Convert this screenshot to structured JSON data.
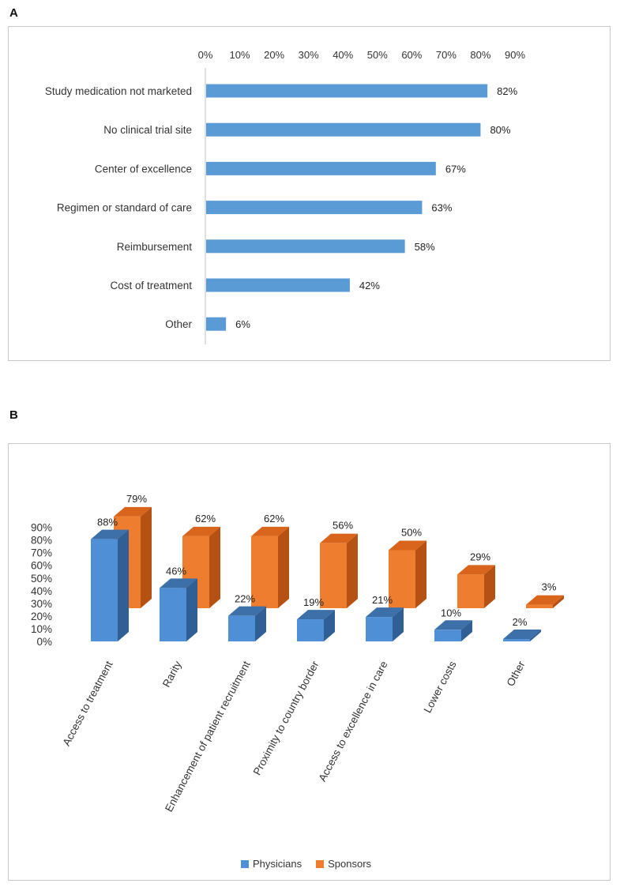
{
  "panels": {
    "a_label": "A",
    "b_label": "B"
  },
  "colors": {
    "bar_blue": "#5b9bd5",
    "physicians_front": "#4f8fd6",
    "physicians_side": "#2f5f95",
    "physicians_top": "#3d6fa8",
    "sponsors_front": "#ef7d2f",
    "sponsors_side": "#b55213",
    "sponsors_top": "#d9651c",
    "axis": "#bfbfbf"
  },
  "chart_data": [
    {
      "type": "bar",
      "orientation": "horizontal",
      "title": "",
      "categories": [
        "Study medication not marketed",
        "No clinical trial site",
        "Center of excellence",
        "Regimen or standard of care",
        "Reimbursement",
        "Cost of treatment",
        "Other"
      ],
      "values": [
        82,
        80,
        67,
        63,
        58,
        42,
        6
      ],
      "value_labels": [
        "82%",
        "80%",
        "67%",
        "63%",
        "58%",
        "42%",
        "6%"
      ],
      "xlim": [
        0,
        90
      ],
      "x_ticks": [
        "0%",
        "10%",
        "20%",
        "30%",
        "40%",
        "50%",
        "60%",
        "70%",
        "80%",
        "90%"
      ],
      "axis_position": "top",
      "legend": false
    },
    {
      "type": "bar",
      "style": "3d-clustered-column",
      "title": "",
      "categories": [
        "Access to treatment",
        "Rarity",
        "Enhancement of patient recruitment",
        "Proximity to country border",
        "Access to excellence in care",
        "Lower costs",
        "Other"
      ],
      "series": [
        {
          "name": "Physicians",
          "values": [
            88,
            46,
            22,
            19,
            21,
            10,
            2
          ],
          "labels": [
            "88%",
            "46%",
            "22%",
            "19%",
            "21%",
            "10%",
            "2%"
          ]
        },
        {
          "name": "Sponsors",
          "values": [
            79,
            62,
            62,
            56,
            50,
            29,
            3
          ],
          "labels": [
            "79%",
            "62%",
            "62%",
            "56%",
            "50%",
            "29%",
            "3%"
          ]
        }
      ],
      "ylim": [
        0,
        90
      ],
      "y_ticks": [
        "0%",
        "10%",
        "20%",
        "30%",
        "40%",
        "50%",
        "60%",
        "70%",
        "80%",
        "90%"
      ],
      "legend_position": "bottom",
      "legend": [
        "Physicians",
        "Sponsors"
      ]
    }
  ]
}
